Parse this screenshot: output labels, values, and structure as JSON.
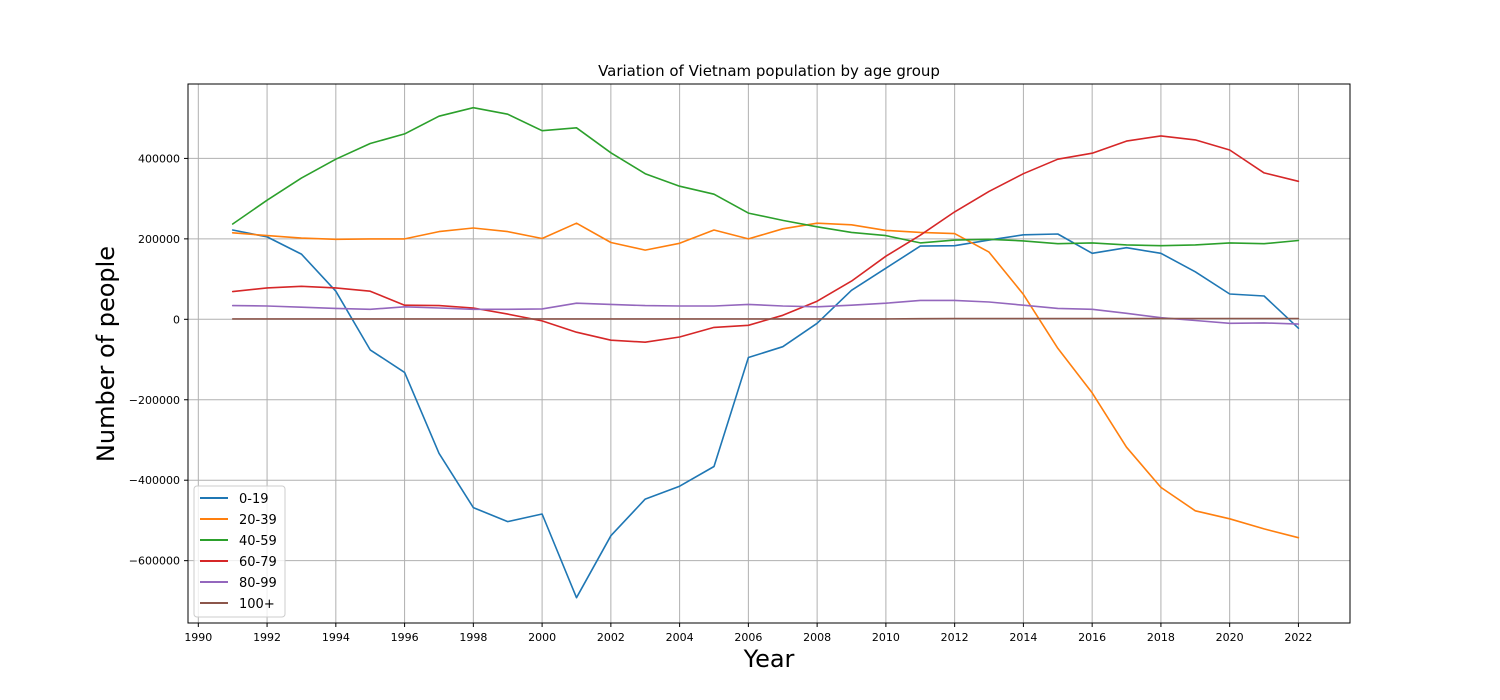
{
  "chart_data": {
    "type": "line",
    "title": "Variation of Vietnam population by age group",
    "xlabel": "Year",
    "ylabel": "Number of people",
    "xlim": [
      1989.7,
      2023.5
    ],
    "ylim": [
      -755000,
      585000
    ],
    "x_ticks": [
      1990,
      1992,
      1994,
      1996,
      1998,
      2000,
      2002,
      2004,
      2006,
      2008,
      2010,
      2012,
      2014,
      2016,
      2018,
      2020,
      2022
    ],
    "x_tick_labels": [
      "1990",
      "1992",
      "1994",
      "1996",
      "1998",
      "2000",
      "2002",
      "2004",
      "2006",
      "2008",
      "2010",
      "2012",
      "2014",
      "2016",
      "2018",
      "2020",
      "2022"
    ],
    "y_ticks": [
      -600000,
      -400000,
      -200000,
      0,
      200000,
      400000
    ],
    "y_tick_labels": [
      "−600000",
      "−400000",
      "−200000",
      "0",
      "200000",
      "400000"
    ],
    "grid": true,
    "legend_position": "lower-left",
    "x": [
      1991,
      1992,
      1993,
      1994,
      1995,
      1996,
      1997,
      1998,
      1999,
      2000,
      2001,
      2002,
      2003,
      2004,
      2005,
      2006,
      2007,
      2008,
      2009,
      2010,
      2011,
      2012,
      2013,
      2014,
      2015,
      2016,
      2017,
      2018,
      2019,
      2020,
      2021,
      2022
    ],
    "series": [
      {
        "name": "0-19",
        "color": "#1f77b4",
        "values": [
          222000,
          205000,
          162000,
          70000,
          -76000,
          -132000,
          -333000,
          -468000,
          -503000,
          -484000,
          -692000,
          -538000,
          -447000,
          -415000,
          -366000,
          -95000,
          -68000,
          -10000,
          72000,
          127000,
          182000,
          183000,
          197000,
          210000,
          212000,
          164000,
          178000,
          164000,
          118000,
          63000,
          58000,
          -22000
        ]
      },
      {
        "name": "20-39",
        "color": "#ff7f0e",
        "values": [
          215000,
          208000,
          202000,
          199000,
          200000,
          200000,
          218000,
          227000,
          218000,
          201000,
          239000,
          191000,
          172000,
          189000,
          222000,
          200000,
          225000,
          239000,
          235000,
          221000,
          216000,
          213000,
          167000,
          62000,
          -72000,
          -183000,
          -318000,
          -418000,
          -476000,
          -496000,
          -521000,
          -543000
        ]
      },
      {
        "name": "40-59",
        "color": "#2ca02c",
        "values": [
          237000,
          296000,
          351000,
          398000,
          437000,
          461000,
          505000,
          526000,
          510000,
          469000,
          476000,
          414000,
          362000,
          331000,
          311000,
          264000,
          246000,
          230000,
          216000,
          208000,
          190000,
          197000,
          199000,
          195000,
          188000,
          190000,
          185000,
          183000,
          185000,
          190000,
          188000,
          196000
        ]
      },
      {
        "name": "60-79",
        "color": "#d62728",
        "values": [
          69000,
          78000,
          82000,
          78000,
          70000,
          35000,
          34000,
          28000,
          13000,
          -4000,
          -32000,
          -52000,
          -57000,
          -44000,
          -20000,
          -15000,
          10000,
          45000,
          95000,
          157000,
          209000,
          267000,
          318000,
          362000,
          398000,
          413000,
          443000,
          456000,
          446000,
          421000,
          364000,
          343000
        ]
      },
      {
        "name": "80-99",
        "color": "#9467bd",
        "values": [
          34000,
          33000,
          30000,
          27000,
          25000,
          31000,
          28000,
          25000,
          25000,
          26000,
          40000,
          37000,
          34000,
          33000,
          33000,
          37000,
          33000,
          31000,
          35000,
          40000,
          47000,
          47000,
          43000,
          35000,
          27000,
          25000,
          15000,
          4000,
          -3000,
          -10000,
          -9000,
          -12000
        ]
      },
      {
        "name": "100+",
        "color": "#8c564b",
        "values": [
          1000,
          1000,
          1000,
          1000,
          1000,
          1000,
          1000,
          1000,
          1000,
          1000,
          1000,
          1000,
          1000,
          1000,
          1000,
          1000,
          1000,
          1000,
          1000,
          1000,
          1500,
          2000,
          2000,
          2000,
          2000,
          2000,
          2000,
          2000,
          2000,
          2000,
          2000,
          2000
        ]
      }
    ]
  }
}
